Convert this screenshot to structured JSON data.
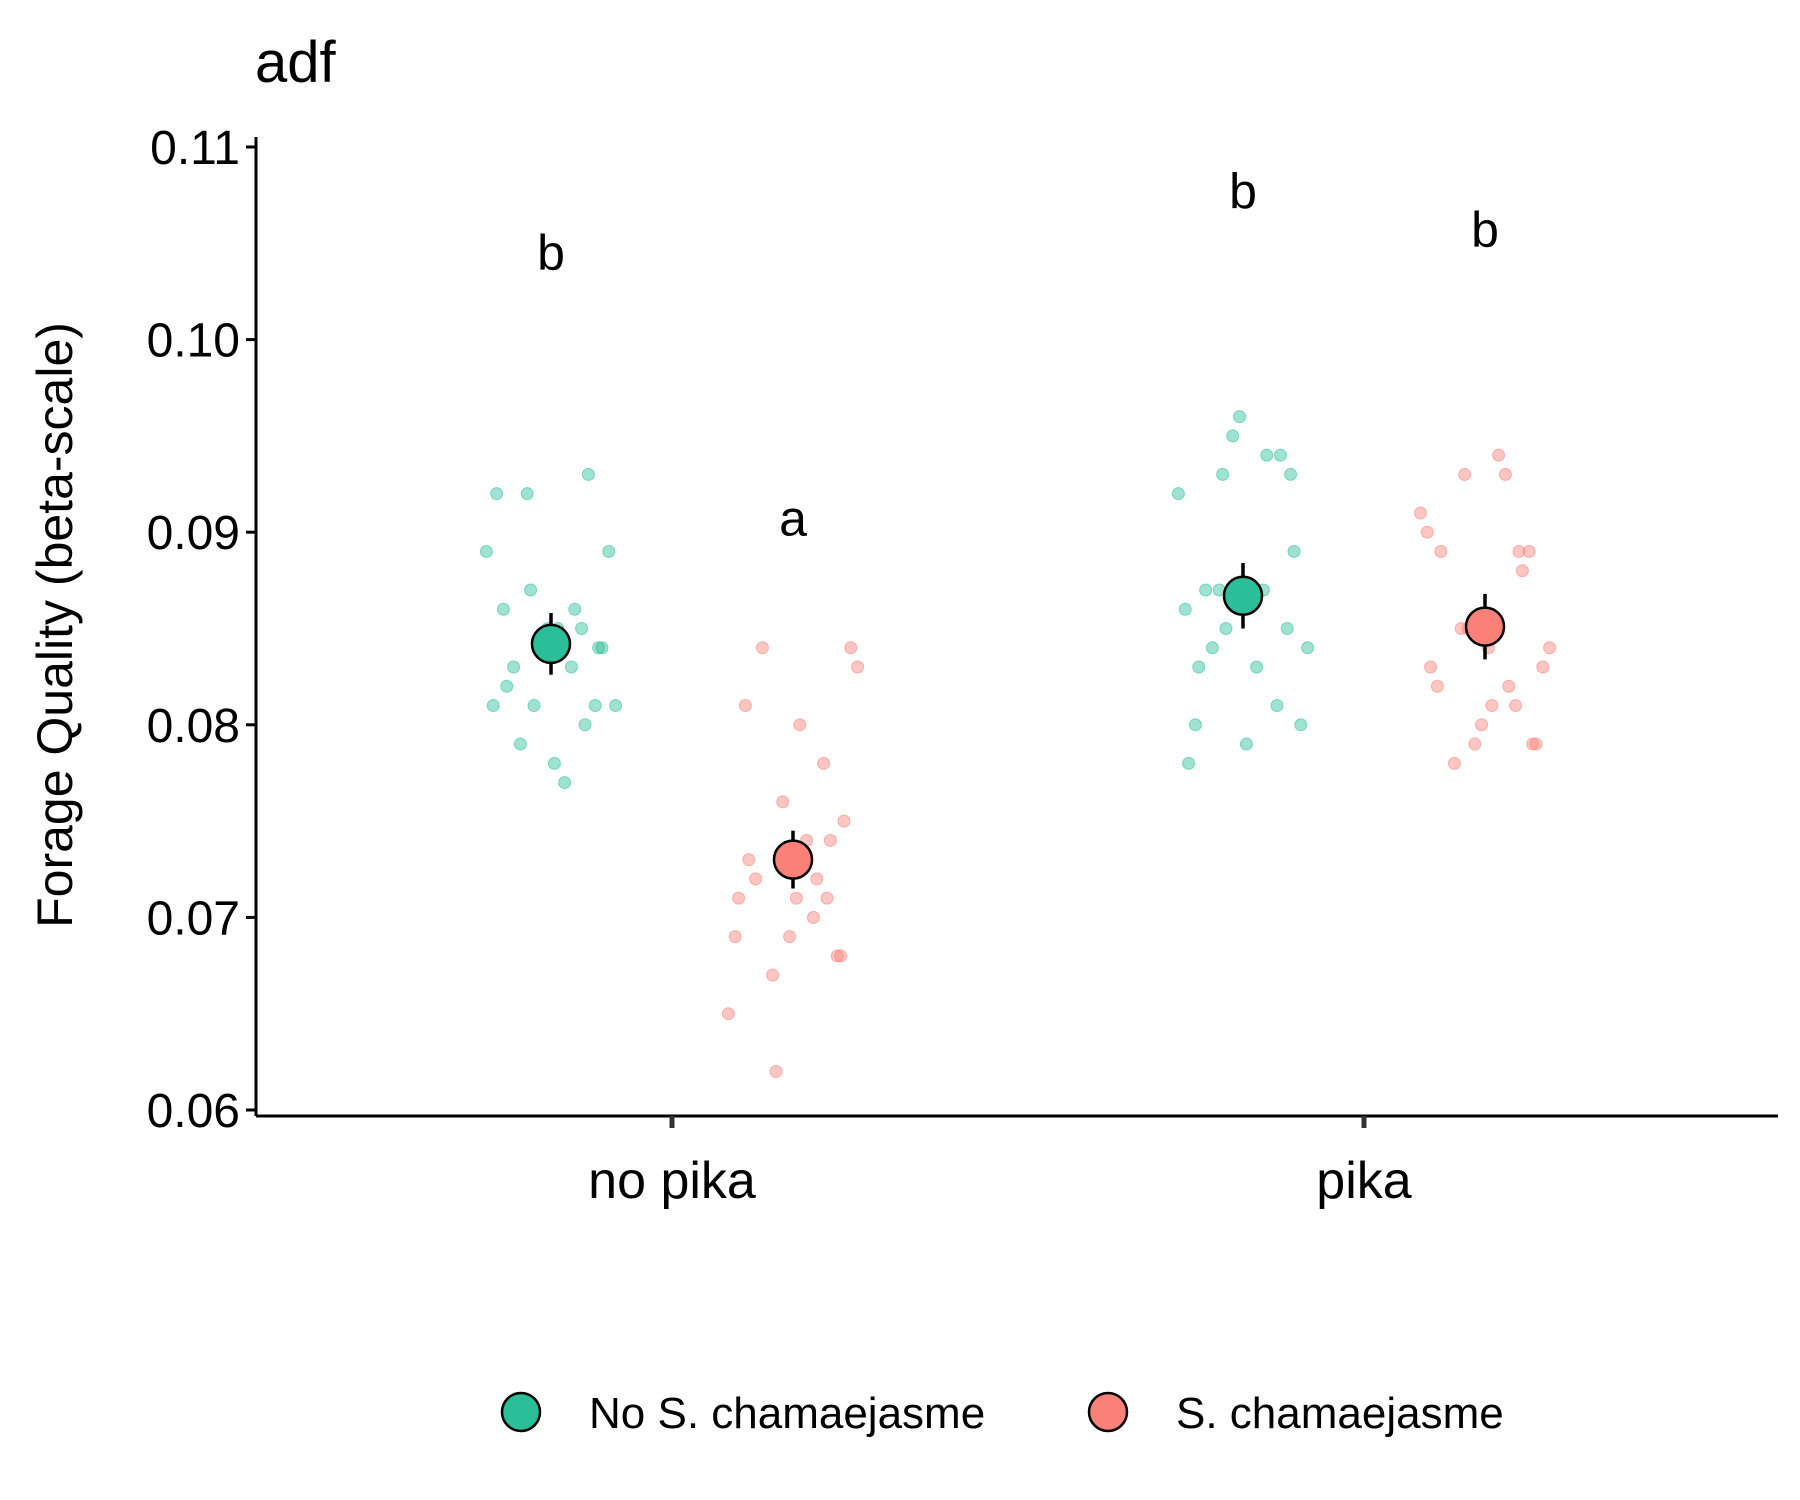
{
  "chart_data": {
    "type": "scatter",
    "title": "adf",
    "ylabel": "Forage Quality (beta-scale)",
    "xlabel": "",
    "ylim": [
      0.06,
      0.11
    ],
    "yticks": [
      "0.06",
      "0.07",
      "0.08",
      "0.09",
      "0.10",
      "0.11"
    ],
    "categories": [
      "no pika",
      "pika"
    ],
    "grid": false,
    "legend_position": "bottom",
    "series": [
      {
        "name": "No S. chamaejasme",
        "color": "#2bbf99",
        "groups": [
          {
            "category": "no pika",
            "mean": 0.0842,
            "ci": [
              0.0826,
              0.0858
            ],
            "letter": "b",
            "letter_y": 0.1045,
            "points": [
              0.089,
              0.093,
              0.092,
              0.089,
              0.086,
              0.085,
              0.085,
              0.084,
              0.084,
              0.083,
              0.083,
              0.081,
              0.081,
              0.081,
              0.081,
              0.079,
              0.077,
              0.082,
              0.08,
              0.078,
              0.092,
              0.086,
              0.085,
              0.084,
              0.087
            ]
          },
          {
            "category": "pika",
            "mean": 0.0867,
            "ci": [
              0.085,
              0.0884
            ],
            "letter": "b",
            "letter_y": 0.1077,
            "points": [
              0.095,
              0.089,
              0.087,
              0.087,
              0.086,
              0.085,
              0.085,
              0.084,
              0.084,
              0.083,
              0.083,
              0.081,
              0.079,
              0.078,
              0.094,
              0.096,
              0.093,
              0.093,
              0.092,
              0.094,
              0.087,
              0.08,
              0.08
            ]
          }
        ]
      },
      {
        "name": "S. chamaejasme",
        "color": "#fb8077",
        "groups": [
          {
            "category": "no pika",
            "mean": 0.073,
            "ci": [
              0.0715,
              0.0745
            ],
            "letter": "a",
            "letter_y": 0.0907,
            "points": [
              0.084,
              0.081,
              0.08,
              0.078,
              0.076,
              0.075,
              0.072,
              0.07,
              0.069,
              0.068,
              0.062,
              0.083,
              0.084,
              0.074,
              0.073,
              0.071,
              0.071,
              0.071,
              0.072,
              0.069,
              0.068,
              0.067,
              0.065,
              0.074
            ]
          },
          {
            "category": "pika",
            "mean": 0.0851,
            "ci": [
              0.0834,
              0.0868
            ],
            "letter": "b",
            "letter_y": 0.1057,
            "points": [
              0.093,
              0.09,
              0.089,
              0.085,
              0.084,
              0.078,
              0.094,
              0.089,
              0.089,
              0.084,
              0.083,
              0.082,
              0.08,
              0.079,
              0.093,
              0.091,
              0.088,
              0.085,
              0.083,
              0.082,
              0.081,
              0.081,
              0.079,
              0.079
            ]
          }
        ]
      }
    ]
  }
}
